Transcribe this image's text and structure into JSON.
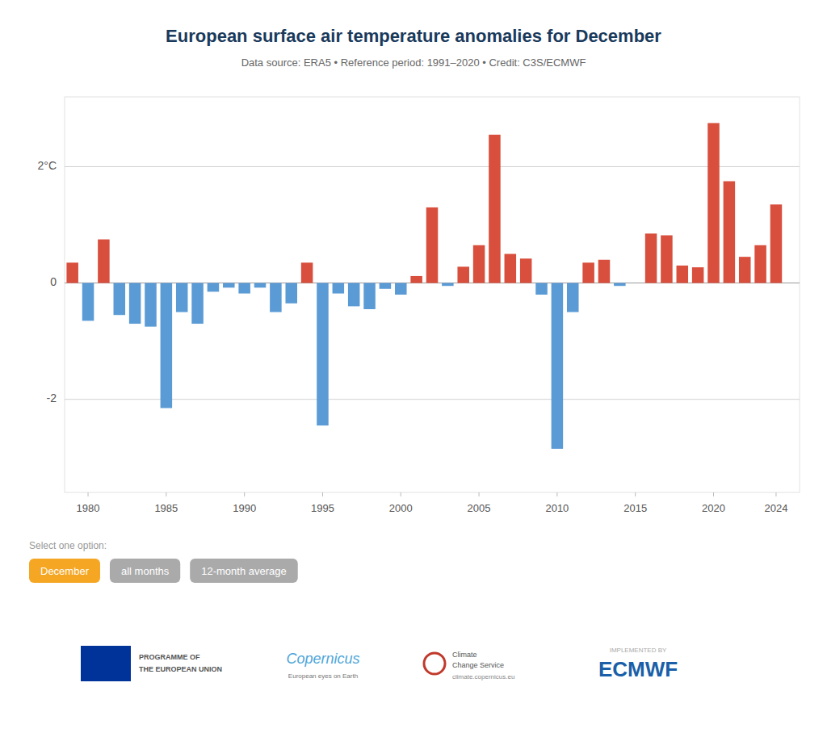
{
  "chart_data": {
    "type": "bar",
    "title": "European surface air temperature anomalies for December",
    "subtitle": "Data source: ERA5 • Reference period: 1991–2020 • Credit: C3S/ECMWF",
    "x": [
      1979,
      1980,
      1981,
      1982,
      1983,
      1984,
      1985,
      1986,
      1987,
      1988,
      1989,
      1990,
      1991,
      1992,
      1993,
      1994,
      1995,
      1996,
      1997,
      1998,
      1999,
      2000,
      2001,
      2002,
      2003,
      2004,
      2005,
      2006,
      2007,
      2008,
      2009,
      2010,
      2011,
      2012,
      2013,
      2014,
      2015,
      2016,
      2017,
      2018,
      2019,
      2020,
      2021,
      2022,
      2023,
      2024
    ],
    "values": [
      0.35,
      -0.65,
      0.75,
      -0.55,
      -0.7,
      -0.75,
      -2.15,
      -0.5,
      -0.7,
      -0.15,
      -0.08,
      -0.18,
      -0.08,
      -0.5,
      -0.35,
      0.35,
      -2.45,
      -0.18,
      -0.4,
      -0.45,
      -0.1,
      -0.2,
      0.12,
      1.3,
      -0.05,
      0.28,
      0.65,
      2.55,
      0.5,
      0.42,
      -0.2,
      -2.85,
      -0.5,
      0.35,
      0.4,
      -0.05,
      0.0,
      0.85,
      0.82,
      0.3,
      0.27,
      2.75,
      1.75,
      0.45,
      0.65,
      1.35
    ],
    "colors": [
      "#d94f3d",
      "#5b9bd5",
      "#d94f3d",
      "#5b9bd5",
      "#5b9bd5",
      "#5b9bd5",
      "#5b9bd5",
      "#5b9bd5",
      "#5b9bd5",
      "#5b9bd5",
      "#5b9bd5",
      "#5b9bd5",
      "#5b9bd5",
      "#5b9bd5",
      "#5b9bd5",
      "#d94f3d",
      "#5b9bd5",
      "#5b9bd5",
      "#5b9bd5",
      "#5b9bd5",
      "#5b9bd5",
      "#5b9bd5",
      "#d94f3d",
      "#d94f3d",
      "#5b9bd5",
      "#d94f3d",
      "#d94f3d",
      "#d94f3d",
      "#d94f3d",
      "#d94f3d",
      "#5b9bd5",
      "#5b9bd5",
      "#5b9bd5",
      "#d94f3d",
      "#d94f3d",
      "#5b9bd5",
      "#d94f3d",
      "#d94f3d",
      "#d94f3d",
      "#d94f3d",
      "#d94f3d",
      "#d94f3d",
      "#d94f3d",
      "#d94f3d",
      "#d94f3d",
      "#d94f3d"
    ],
    "xlim": [
      1978.5,
      2025.5
    ],
    "xticks": [
      1980,
      1985,
      1990,
      1995,
      2000,
      2005,
      2010,
      2015,
      2020,
      2024
    ],
    "ylim": [
      -3.6,
      3.2
    ],
    "yticks": [
      -2,
      0,
      {
        "value": 2,
        "label": "2°C"
      }
    ],
    "grid": true,
    "annotations": [
      "Select one option:",
      "December",
      "all months",
      "12-month average",
      "PROGRAMME OF",
      "THE EUROPEAN UNION",
      "Copernicus",
      "European eyes on Earth",
      "Climate",
      "Change Service",
      "climate.copernicus.eu",
      "IMPLEMENTED BY",
      "ECMWF"
    ]
  }
}
